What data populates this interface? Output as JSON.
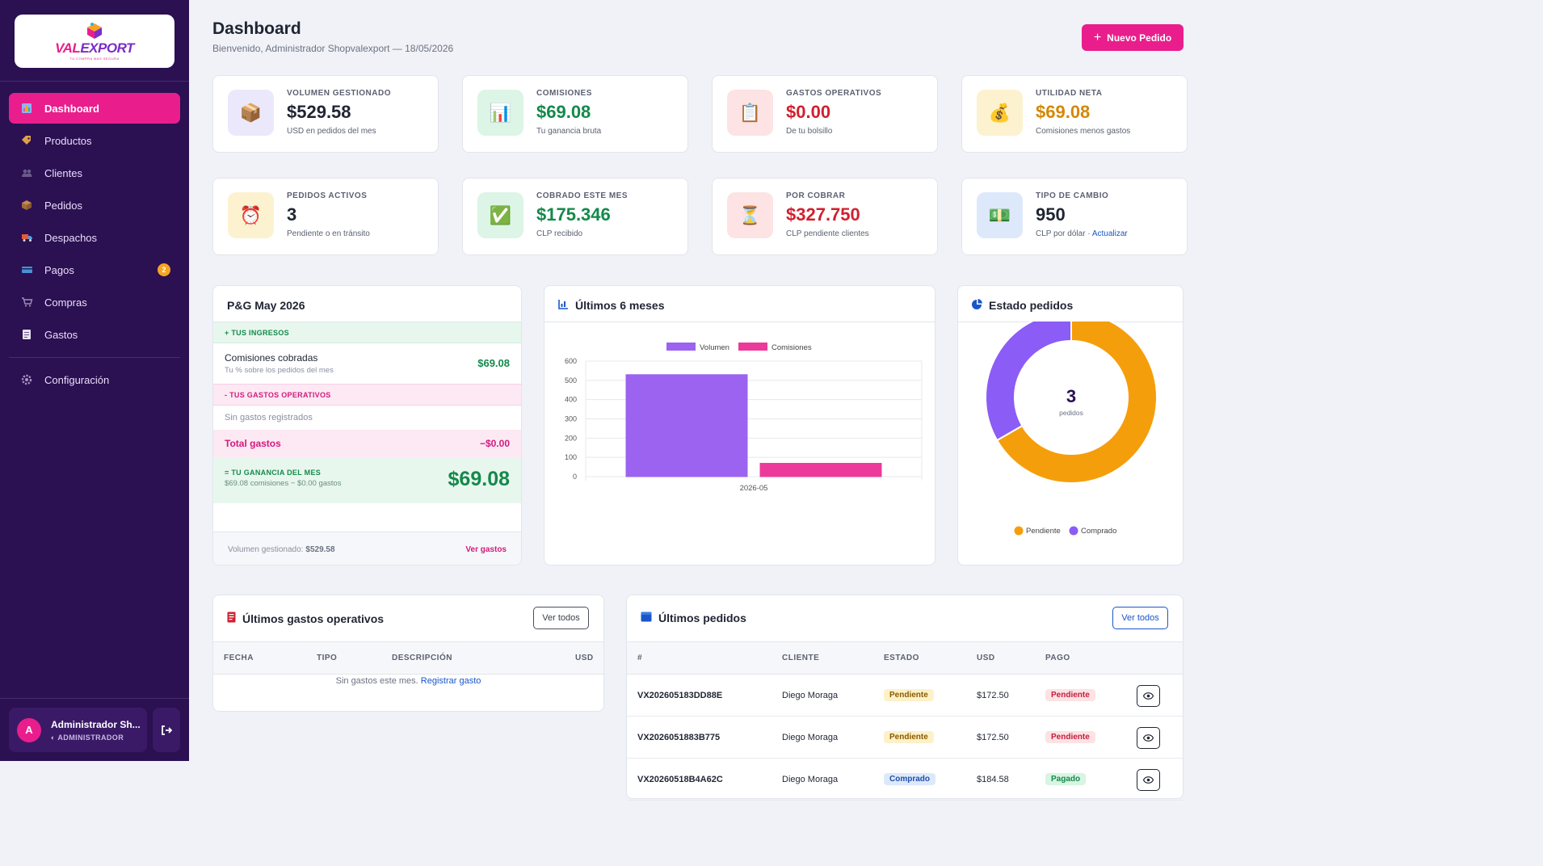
{
  "sidebar": {
    "logo_text_a": "VAL",
    "logo_text_b": "EXPORT",
    "logo_sub": "TU COMPRA MAS SEGURA",
    "items": [
      {
        "label": "Dashboard",
        "icon": "chart-icon",
        "active": true
      },
      {
        "label": "Productos",
        "icon": "tag-icon"
      },
      {
        "label": "Clientes",
        "icon": "users-icon"
      },
      {
        "label": "Pedidos",
        "icon": "box-icon"
      },
      {
        "label": "Despachos",
        "icon": "truck-icon"
      },
      {
        "label": "Pagos",
        "icon": "card-icon",
        "badge": "2"
      },
      {
        "label": "Compras",
        "icon": "cart-icon"
      },
      {
        "label": "Gastos",
        "icon": "receipt-icon"
      }
    ],
    "config_label": "Configuración",
    "user": {
      "initial": "A",
      "name": "Administrador Sh...",
      "role": "ADMINISTRADOR"
    }
  },
  "header": {
    "title": "Dashboard",
    "subtitle": "Bienvenido, Administrador Shopvalexport — 18/05/2026",
    "new_button": "Nuevo Pedido"
  },
  "stats": [
    {
      "label": "Volumen gestionado",
      "value": "$529.58",
      "note": "USD en pedidos del mes",
      "color": "#1f2533",
      "icon": "📦",
      "bg": "#ece8fb"
    },
    {
      "label": "Comisiones",
      "value": "$69.08",
      "note": "Tu ganancia bruta",
      "color": "#14894b",
      "icon": "📊",
      "bg": "#dcf5e6"
    },
    {
      "label": "Gastos operativos",
      "value": "$0.00",
      "note": "De tu bolsillo",
      "color": "#d1202f",
      "icon": "📋",
      "bg": "#fde3e3"
    },
    {
      "label": "Utilidad neta",
      "value": "$69.08",
      "note": "Comisiones menos gastos",
      "color": "#d48806",
      "icon": "💰",
      "bg": "#fdf2cf"
    },
    {
      "label": "Pedidos activos",
      "value": "3",
      "note": "Pendiente o en tránsito",
      "color": "#1f2533",
      "icon": "⏰",
      "bg": "#fdf2cf"
    },
    {
      "label": "Cobrado este mes",
      "value": "$175.346",
      "note": "CLP recibido",
      "color": "#14894b",
      "icon": "✅",
      "bg": "#dcf5e6"
    },
    {
      "label": "Por cobrar",
      "value": "$327.750",
      "note": "CLP pendiente clientes",
      "color": "#d1202f",
      "icon": "⏳",
      "bg": "#fde3e3"
    },
    {
      "label": "Tipo de cambio",
      "value": "950",
      "note": "CLP por dólar · ",
      "link": "Actualizar",
      "color": "#1f2533",
      "icon": "💵",
      "bg": "#dde9fb"
    }
  ],
  "pg": {
    "title": "P&G May 2026",
    "income_label": "+ TUS INGRESOS",
    "income_row": {
      "title": "Comisiones cobradas",
      "sub": "Tu % sobre los pedidos del mes",
      "amount": "$69.08"
    },
    "expense_label": "- TUS GASTOS OPERATIVOS",
    "expense_empty": "Sin gastos registrados",
    "total_label": "Total gastos",
    "total_amount": "−$0.00",
    "net_label": "= TU GANANCIA DEL MES",
    "net_sub": "$69.08 comisiones − $0.00 gastos",
    "net_amount": "$69.08",
    "foot_label": "Volumen gestionado:",
    "foot_value": "$529.58",
    "foot_link": "Ver gastos"
  },
  "chart_title": "Últimos 6 meses",
  "chart_data": {
    "type": "bar",
    "categories": [
      "2026-05"
    ],
    "series": [
      {
        "name": "Volumen",
        "values": [
          529.58
        ],
        "color": "#9c62f0"
      },
      {
        "name": "Comisiones",
        "values": [
          69.08
        ],
        "color": "#ec3a9a"
      }
    ],
    "ylim": [
      0,
      600
    ],
    "yticks": [
      "0",
      "100",
      "200",
      "300",
      "400",
      "500",
      "600"
    ],
    "grid": true,
    "legend": "top"
  },
  "donut": {
    "title": "Estado pedidos",
    "center_value": "3",
    "center_label": "pedidos",
    "slices": [
      {
        "name": "Pendiente",
        "value": 2,
        "color": "#f59e0b"
      },
      {
        "name": "Comprado",
        "value": 1,
        "color": "#8b5cf6"
      }
    ]
  },
  "gastos": {
    "title": "Últimos gastos operativos",
    "button": "Ver todos",
    "columns": [
      "FECHA",
      "TIPO",
      "DESCRIPCIÓN",
      "USD"
    ],
    "empty_text": "Sin gastos este mes.",
    "empty_link": "Registrar gasto"
  },
  "pedidos": {
    "title": "Últimos pedidos",
    "button": "Ver todos",
    "columns": [
      "#",
      "CLIENTE",
      "ESTADO",
      "USD",
      "PAGO"
    ],
    "rows": [
      {
        "code": "VX202605183DD88E",
        "client": "Diego Moraga",
        "status": "Pendiente",
        "usd": "$172.50",
        "pay": "Pendiente"
      },
      {
        "code": "VX2026051883B775",
        "client": "Diego Moraga",
        "status": "Pendiente",
        "usd": "$172.50",
        "pay": "Pendiente"
      },
      {
        "code": "VX20260518B4A62C",
        "client": "Diego Moraga",
        "status": "Comprado",
        "usd": "$184.58",
        "pay": "Pagado"
      }
    ]
  }
}
